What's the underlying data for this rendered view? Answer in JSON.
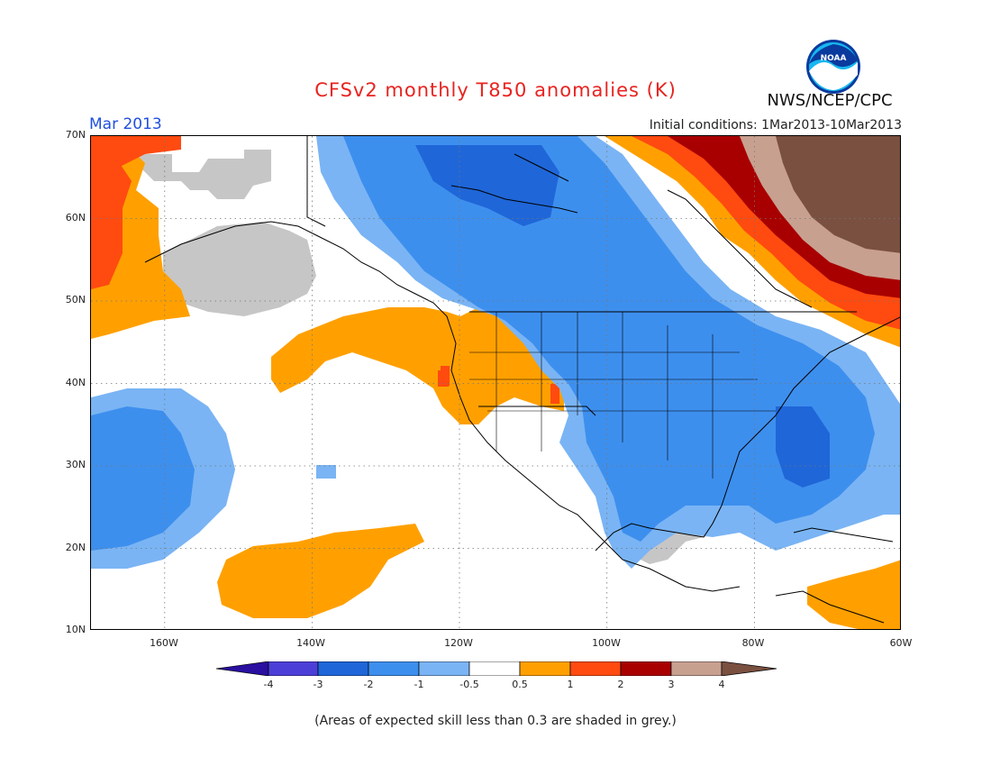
{
  "title": "CFSv2 monthly T850 anomalies (K)",
  "month_label": "Mar 2013",
  "initial_conditions": "Initial conditions: 1Mar2013-10Mar2013",
  "agency": "NWS/NCEP/CPC",
  "logo_text": "NOAA",
  "note": "(Areas of expected skill less than 0.3 are shaded in grey.)",
  "map": {
    "lat_labels": [
      "70N",
      "60N",
      "50N",
      "40N",
      "30N",
      "20N",
      "10N"
    ],
    "lon_labels": [
      "160W",
      "140W",
      "120W",
      "100W",
      "80W",
      "60W"
    ],
    "extent": {
      "lon_min": -170,
      "lon_max": -60,
      "lat_min": 10,
      "lat_max": 70
    },
    "low_skill_color": "#c6c6c6"
  },
  "colorbar": {
    "labels": [
      "-4",
      "-3",
      "-2",
      "-1",
      "-0.5",
      "0.5",
      "1",
      "2",
      "3",
      "4"
    ],
    "colors": [
      "#2a0fa0",
      "#4c3fd8",
      "#1f66d8",
      "#3d8fee",
      "#7ab4f4",
      "#ffffff",
      "#ffa000",
      "#ff4a10",
      "#a80000",
      "#c8a090",
      "#7a5040"
    ]
  }
}
